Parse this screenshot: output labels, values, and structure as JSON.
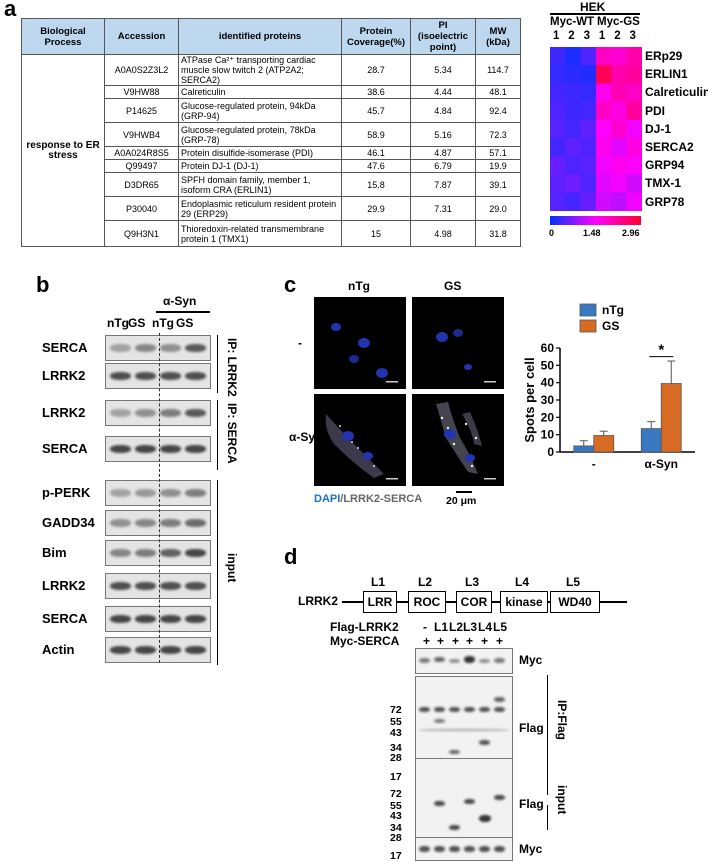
{
  "panel_a": {
    "letter": "a",
    "table": {
      "headers": [
        "Biological Process",
        "Accession",
        "identified proteins",
        "Protein Coverage(%)",
        "PI (isoelectric point)",
        "MW (kDa)"
      ],
      "process": "response to ER stress",
      "rows": [
        {
          "accession": "A0A0S2Z3L2",
          "protein": "ATPase Ca²⁺ transporting cardiac muscle slow twitch 2 (ATP2A2; SERCA2)",
          "coverage": "28.7",
          "pi": "5.34",
          "mw": "114.7"
        },
        {
          "accession": "V9HW88",
          "protein": "Calreticulin",
          "coverage": "38.6",
          "pi": "4.44",
          "mw": "48.1"
        },
        {
          "accession": "P14625",
          "protein": "Glucose-regulated protein, 94kDa (GRP-94)",
          "coverage": "45.7",
          "pi": "4.84",
          "mw": "92.4"
        },
        {
          "accession": "V9HWB4",
          "protein": "Glucose-regulated protein, 78kDa (GRP-78)",
          "coverage": "58.9",
          "pi": "5.16",
          "mw": "72.3"
        },
        {
          "accession": "A0A024R8S5",
          "protein": "Protein disulfide-isomerase (PDI)",
          "coverage": "46.1",
          "pi": "4.87",
          "mw": "57.1"
        },
        {
          "accession": "Q99497",
          "protein": "Protein DJ-1 (DJ-1)",
          "coverage": "47.6",
          "pi": "6.79",
          "mw": "19.9"
        },
        {
          "accession": "D3DR65",
          "protein": "SPFH domain family, member 1, isoform CRA (ERLIN1)",
          "coverage": "15.8",
          "pi": "7.87",
          "mw": "39.1"
        },
        {
          "accession": "P30040",
          "protein": "Endoplasmic reticulum resident protein 29 (ERP29)",
          "coverage": "29.9",
          "pi": "7.31",
          "mw": "29.0"
        },
        {
          "accession": "Q9H3N1",
          "protein": "Thioredoxin-related transmembrane protein 1 (TMX1)",
          "coverage": "15",
          "pi": "4.98",
          "mw": "31.8"
        }
      ]
    },
    "heatmap": {
      "title": "HEK",
      "groups": [
        "Myc-WT",
        "Myc-GS"
      ],
      "lanes": [
        "1",
        "2",
        "3",
        "1",
        "2",
        "3"
      ],
      "rows": [
        "ERp29",
        "ERLIN1",
        "Calreticulin",
        "PDI",
        "DJ-1",
        "SERCA2",
        "GRP94",
        "TMX-1",
        "GRP78"
      ],
      "values": [
        [
          0.35,
          0.15,
          0.45,
          1.9,
          1.8,
          2.1
        ],
        [
          0.3,
          0.25,
          0.2,
          2.7,
          2.1,
          2.2
        ],
        [
          0.4,
          0.35,
          0.3,
          1.6,
          2.0,
          1.9
        ],
        [
          0.45,
          0.35,
          0.4,
          1.9,
          1.7,
          2.2
        ],
        [
          0.5,
          0.4,
          0.55,
          1.5,
          1.8,
          1.4
        ],
        [
          0.4,
          0.55,
          0.45,
          1.6,
          1.3,
          1.7
        ],
        [
          0.6,
          0.45,
          0.5,
          1.4,
          1.6,
          1.5
        ],
        [
          0.55,
          0.65,
          0.45,
          1.3,
          1.4,
          1.2
        ],
        [
          0.5,
          0.4,
          0.6,
          1.2,
          1.1,
          1.4
        ]
      ],
      "scale": {
        "min_label": "0",
        "mid_label": "1.48",
        "max_label": "2.96",
        "min": 0,
        "max": 2.96,
        "colors": [
          "#0033ff",
          "#ff00ff",
          "#ff0033"
        ]
      }
    }
  },
  "panel_b": {
    "letter": "b",
    "treatment": "α-Syn",
    "lanes": [
      "nTg",
      "GS",
      "nTg",
      "GS"
    ],
    "blots": [
      {
        "label": "SERCA",
        "intensity": [
          0.35,
          0.5,
          0.45,
          0.75
        ]
      },
      {
        "label": "LRRK2",
        "intensity": [
          0.8,
          0.8,
          0.8,
          0.8
        ]
      },
      {
        "label": "LRRK2",
        "intensity": [
          0.35,
          0.45,
          0.55,
          0.75
        ]
      },
      {
        "label": "SERCA",
        "intensity": [
          0.85,
          0.85,
          0.85,
          0.85
        ]
      },
      {
        "label": "p-PERK",
        "intensity": [
          0.35,
          0.4,
          0.45,
          0.55
        ]
      },
      {
        "label": "GADD34",
        "intensity": [
          0.45,
          0.5,
          0.55,
          0.65
        ]
      },
      {
        "label": "Bim",
        "intensity": [
          0.5,
          0.55,
          0.7,
          0.85
        ]
      },
      {
        "label": "LRRK2",
        "intensity": [
          0.8,
          0.8,
          0.8,
          0.8
        ]
      },
      {
        "label": "SERCA",
        "intensity": [
          0.85,
          0.85,
          0.85,
          0.85
        ]
      },
      {
        "label": "Actin",
        "intensity": [
          0.85,
          0.85,
          0.85,
          0.85
        ]
      }
    ],
    "side_labels": [
      "IP: LRRK2",
      "IP: SERCA",
      "input"
    ]
  },
  "panel_c": {
    "letter": "c",
    "col_labels": [
      "nTg",
      "GS"
    ],
    "row_labels": [
      "-",
      "α-Syn"
    ],
    "stain_dapi": "DAPI",
    "stain_rest": "/LRRK2-SERCA",
    "scale_bar": "20 μm",
    "chart_data": {
      "type": "bar",
      "categories": [
        "-",
        "α-Syn"
      ],
      "series": [
        {
          "name": "nTg",
          "values": [
            3.5,
            13.5
          ],
          "errors": [
            3,
            4
          ],
          "color": "#3a78c2"
        },
        {
          "name": "GS",
          "values": [
            9.5,
            39.5
          ],
          "errors": [
            2.5,
            13
          ],
          "color": "#d86b24"
        }
      ],
      "ylabel": "Spots per cell",
      "ylim": [
        0,
        60
      ],
      "yticks": [
        0,
        10,
        20,
        30,
        40,
        50,
        60
      ],
      "annotation": "*",
      "legend": "top-left"
    }
  },
  "panel_d": {
    "letter": "d",
    "protein": "LRRK2",
    "domains": [
      {
        "label": "L1",
        "name": "LRR"
      },
      {
        "label": "L2",
        "name": "ROC"
      },
      {
        "label": "L3",
        "name": "COR"
      },
      {
        "label": "L4",
        "name": "kinase"
      },
      {
        "label": "L5",
        "name": "WD40"
      }
    ],
    "row_flag": "Flag-LRRK2",
    "row_myc": "Myc-SERCA",
    "flag_lanes": [
      "-",
      "L1",
      "L2",
      "L3",
      "L4",
      "L5"
    ],
    "plus": "+",
    "markers": [
      "72",
      "55",
      "43",
      "34",
      "28",
      "17"
    ],
    "blot_labels": [
      "Myc",
      "Flag",
      "Flag",
      "Myc"
    ],
    "side_labels": [
      "IP:Flag",
      "input"
    ]
  }
}
